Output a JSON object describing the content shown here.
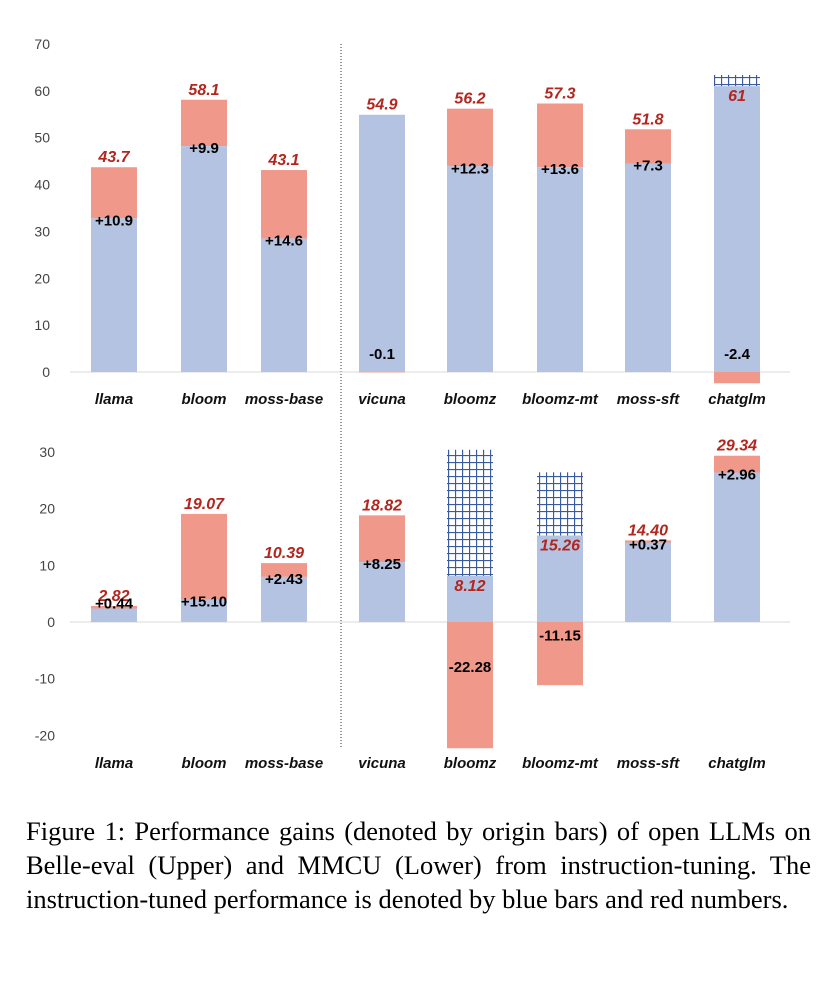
{
  "colors": {
    "base": "#b4c3e2",
    "gain": "#f0998a",
    "total_label": "#b3261e",
    "hatch": "#3a5aa0"
  },
  "chart_data": [
    {
      "type": "bar",
      "stacked": true,
      "panel": "upper",
      "benchmark": "Belle-eval",
      "ylim": [
        0,
        70
      ],
      "yticks": [
        "70",
        "60",
        "50",
        "40",
        "30",
        "20",
        "10",
        "0"
      ],
      "ytick_values": [
        70,
        60,
        50,
        40,
        30,
        20,
        10,
        0
      ],
      "categories": [
        "llama",
        "bloom",
        "moss-base",
        "vicuna",
        "bloomz",
        "bloomz-mt",
        "moss-sft",
        "chatglm"
      ],
      "base_values": [
        32.8,
        48.2,
        28.5,
        55.0,
        43.9,
        43.7,
        44.5,
        63.4
      ],
      "gain_values": [
        10.9,
        9.9,
        14.6,
        -0.1,
        12.3,
        13.6,
        7.3,
        -2.4
      ],
      "gain_labels": [
        "+10.9",
        "+9.9",
        "+14.6",
        "-0.1",
        "+12.3",
        "+13.6",
        "+7.3",
        "-2.4"
      ],
      "totals": [
        43.7,
        58.1,
        43.1,
        54.9,
        56.2,
        57.3,
        51.8,
        61
      ],
      "total_labels": [
        "43.7",
        "58.1",
        "43.1",
        "54.9",
        "56.2",
        "57.3",
        "51.8",
        "61"
      ],
      "hatched_overlap": [
        "chatglm"
      ],
      "divider_after": "moss-base"
    },
    {
      "type": "bar",
      "stacked": true,
      "panel": "lower",
      "benchmark": "MMCU",
      "ylim": [
        -20,
        30
      ],
      "yticks": [
        "30",
        "20",
        "10",
        "0",
        "-10",
        "-20"
      ],
      "ytick_values": [
        30,
        20,
        10,
        0,
        -10,
        -20
      ],
      "categories": [
        "llama",
        "bloom",
        "moss-base",
        "vicuna",
        "bloomz",
        "bloomz-mt",
        "moss-sft",
        "chatglm"
      ],
      "base_values": [
        2.38,
        3.97,
        7.96,
        10.57,
        30.4,
        26.41,
        14.03,
        26.38
      ],
      "gain_values": [
        0.44,
        15.1,
        2.43,
        8.25,
        -22.28,
        -11.15,
        0.37,
        2.96
      ],
      "gain_labels": [
        "+0.44",
        "+15.10",
        "+2.43",
        "+8.25",
        "-22.28",
        "-11.15",
        "+0.37",
        "+2.96"
      ],
      "totals": [
        2.82,
        19.07,
        10.39,
        18.82,
        8.12,
        15.26,
        14.4,
        29.34
      ],
      "total_labels": [
        "2.82",
        "19.07",
        "10.39",
        "18.82",
        "8.12",
        "15.26",
        "14.40",
        "29.34"
      ],
      "hatched_overlap": [
        "bloomz",
        "bloomz-mt"
      ],
      "divider_after": "moss-base"
    }
  ],
  "caption": "Figure 1: Performance gains (denoted by origin bars) of open LLMs on Belle-eval (Upper) and MMCU (Lower) from instruction-tuning. The instruction-tuned performance is denoted by blue bars and red numbers."
}
